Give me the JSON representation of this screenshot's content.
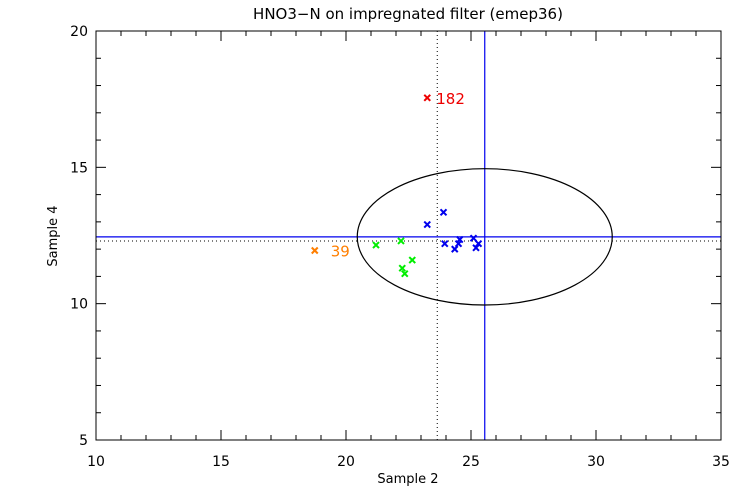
{
  "chart_data": {
    "type": "scatter",
    "title": "HNO3−N on impregnated filter (emep36)",
    "xlabel": "Sample 2",
    "ylabel": "Sample 4",
    "xlim": [
      10,
      35
    ],
    "ylim": [
      5,
      20
    ],
    "xticks": [
      "10",
      "15",
      "20",
      "25",
      "30",
      "35"
    ],
    "yticks": [
      "5",
      "10",
      "15",
      "20"
    ],
    "xtick_values": [
      10,
      15,
      20,
      25,
      30,
      35
    ],
    "ytick_values": [
      5,
      10,
      15,
      20
    ],
    "grid": false,
    "colors": {
      "blue": "#0000ee",
      "green": "#00ee00",
      "orange": "#ff7f00",
      "red": "#ee0000",
      "axis": "#000000"
    },
    "series": [
      {
        "name": "blue",
        "color": "#0000ee",
        "points": [
          {
            "x": 23.9,
            "y": 13.35
          },
          {
            "x": 23.25,
            "y": 12.9
          },
          {
            "x": 23.95,
            "y": 12.2
          },
          {
            "x": 24.5,
            "y": 12.2
          },
          {
            "x": 24.55,
            "y": 12.35
          },
          {
            "x": 24.35,
            "y": 12.0
          },
          {
            "x": 25.1,
            "y": 12.4
          },
          {
            "x": 25.3,
            "y": 12.2
          },
          {
            "x": 25.2,
            "y": 12.05
          }
        ]
      },
      {
        "name": "green",
        "color": "#00ee00",
        "points": [
          {
            "x": 21.2,
            "y": 12.15
          },
          {
            "x": 22.2,
            "y": 12.3
          },
          {
            "x": 22.65,
            "y": 11.6
          },
          {
            "x": 22.25,
            "y": 11.3
          },
          {
            "x": 22.35,
            "y": 11.1
          }
        ]
      },
      {
        "name": "outlier-39",
        "color": "#ff7f00",
        "label": "39",
        "points": [
          {
            "x": 18.75,
            "y": 11.95
          }
        ]
      },
      {
        "name": "outlier-182",
        "color": "#ee0000",
        "label": "182",
        "points": [
          {
            "x": 23.25,
            "y": 17.55
          }
        ]
      }
    ],
    "reference_lines": {
      "median_x": 23.65,
      "median_y": 12.3,
      "assigned_x": 25.55,
      "assigned_y": 12.45
    },
    "ellipse": {
      "cx": 25.55,
      "cy": 12.45,
      "rx": 5.1,
      "ry": 2.5
    }
  }
}
